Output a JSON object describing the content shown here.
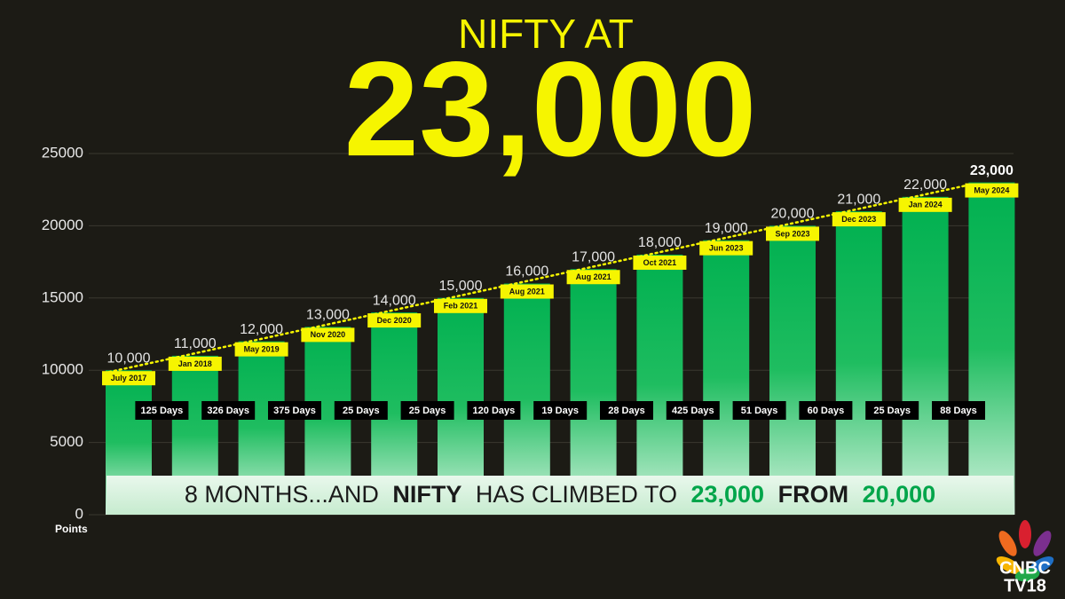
{
  "chart_data": {
    "type": "bar",
    "title": "NIFTY AT",
    "subtitle": "23,000",
    "y_label": "Points",
    "categories": [
      "July 2017",
      "Jan 2018",
      "May 2019",
      "Nov 2020",
      "Dec 2020",
      "Feb 2021",
      "Aug 2021",
      "Aug 2021",
      "Oct 2021",
      "Jun 2023",
      "Sep 2023",
      "Dec 2023",
      "Jan 2024",
      "May 2024"
    ],
    "values": [
      10000,
      11000,
      12000,
      13000,
      14000,
      15000,
      16000,
      17000,
      18000,
      19000,
      20000,
      21000,
      22000,
      23000
    ],
    "value_labels": [
      "10,000",
      "11,000",
      "12,000",
      "13,000",
      "14,000",
      "15,000",
      "16,000",
      "17,000",
      "18,000",
      "19,000",
      "20,000",
      "21,000",
      "22,000",
      "23,000"
    ],
    "gaps": [
      "125 Days",
      "326 Days",
      "375 Days",
      "25 Days",
      "25 Days",
      "120 Days",
      "19 Days",
      "28 Days",
      "425 Days",
      "51 Days",
      "60 Days",
      "25 Days",
      "88 Days"
    ],
    "ylim": [
      0,
      25000
    ],
    "yticks": [
      0,
      5000,
      10000,
      15000,
      20000,
      25000
    ],
    "grid": true,
    "color": "#00b050",
    "banner": [
      "8 MONTHS...AND",
      "NIFTY",
      "HAS CLIMBED TO",
      "23,000",
      "FROM",
      "20,000"
    ]
  },
  "logo": [
    "CNBC",
    "TV18"
  ]
}
